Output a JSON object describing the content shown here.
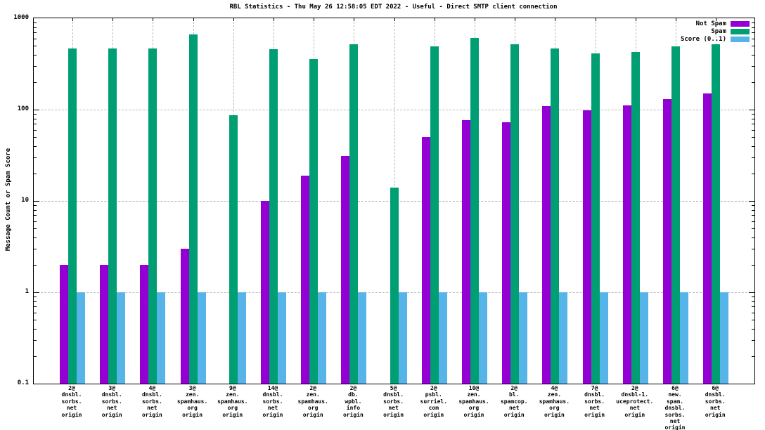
{
  "chart_data": {
    "type": "bar",
    "title": "RBL Statistics - Thu May 26 12:58:05 EDT 2022 - Useful - Direct SMTP client connection",
    "ylabel": "Message Count or Spam Score",
    "yscale": "log",
    "ylim": [
      0.1,
      1000
    ],
    "ytick_labels": [
      "0.1",
      "1",
      "10",
      "100",
      "1000"
    ],
    "ytick_values": [
      0.1,
      1,
      10,
      100,
      1000
    ],
    "grid": true,
    "legend_position": "top-right",
    "categories": [
      "2@dnsbl.sorbs.net origin",
      "3@dnsbl.sorbs.net origin",
      "4@dnsbl.sorbs.net origin",
      "3@zen.spamhaus.org origin",
      "9@zen.spamhaus.org origin",
      "14@dnsbl.sorbs.net origin",
      "2@zen.spamhaus.org origin",
      "2@db.wpbl.info origin",
      "5@dnsbl.sorbs.net origin",
      "2@psbl.surriel.com origin",
      "10@zen.spamhaus.org origin",
      "2@bl.spamcop.net origin",
      "4@zen.spamhaus.org origin",
      "7@dnsbl.sorbs.net origin",
      "2@dnsbl-1.uceprotect.net origin",
      "6@new.spam.dnsbl.sorbs.net origin",
      "6@dnsbl.sorbs.net origin"
    ],
    "category_label_lines": [
      [
        "2@",
        "dnsbl.",
        "sorbs.",
        "net",
        "origin"
      ],
      [
        "3@",
        "dnsbl.",
        "sorbs.",
        "net",
        "origin"
      ],
      [
        "4@",
        "dnsbl.",
        "sorbs.",
        "net",
        "origin"
      ],
      [
        "3@",
        "zen.",
        "spamhaus.",
        "org",
        "origin"
      ],
      [
        "9@",
        "zen.",
        "spamhaus.",
        "org",
        "origin"
      ],
      [
        "14@",
        "dnsbl.",
        "sorbs.",
        "net",
        "origin"
      ],
      [
        "2@",
        "zen.",
        "spamhaus.",
        "org",
        "origin"
      ],
      [
        "2@",
        "db.",
        "wpbl.",
        "info",
        "origin"
      ],
      [
        "5@",
        "dnsbl.",
        "sorbs.",
        "net",
        "origin"
      ],
      [
        "2@",
        "psbl.",
        "surriel.",
        "com",
        "origin"
      ],
      [
        "10@",
        "zen.",
        "spamhaus.",
        "org",
        "origin"
      ],
      [
        "2@",
        "bl.",
        "spamcop.",
        "net",
        "origin"
      ],
      [
        "4@",
        "zen.",
        "spamhaus.",
        "org",
        "origin"
      ],
      [
        "7@",
        "dnsbl.",
        "sorbs.",
        "net",
        "origin"
      ],
      [
        "2@",
        "dnsbl-1.",
        "uceprotect.",
        "net",
        "origin"
      ],
      [
        "6@",
        "new.",
        "spam.",
        "dnsbl.",
        "sorbs.",
        "net",
        "origin"
      ],
      [
        "6@",
        "dnsbl.",
        "sorbs.",
        "net",
        "origin"
      ]
    ],
    "series": [
      {
        "name": "Not Spam",
        "color": "#9400d3",
        "values": [
          2,
          2,
          2,
          3,
          null,
          10,
          19,
          31,
          null,
          50,
          77,
          73,
          110,
          98,
          112,
          131,
          150
        ]
      },
      {
        "name": "Spam",
        "color": "#009e73",
        "values": [
          470,
          470,
          470,
          660,
          87,
          460,
          360,
          520,
          14,
          490,
          610,
          520,
          470,
          410,
          430,
          490,
          520
        ]
      },
      {
        "name": "Score (0..1)",
        "color": "#56b4e9",
        "values": [
          1,
          1,
          1,
          1,
          1,
          1,
          1,
          1,
          1,
          1,
          1,
          1,
          1,
          1,
          1,
          1,
          1
        ]
      }
    ]
  },
  "colors": {
    "not_spam": "#9400d3",
    "spam": "#009e73",
    "score": "#56b4e9",
    "grid": "#b8b8b8",
    "frame": "#000000",
    "background": "#ffffff"
  }
}
